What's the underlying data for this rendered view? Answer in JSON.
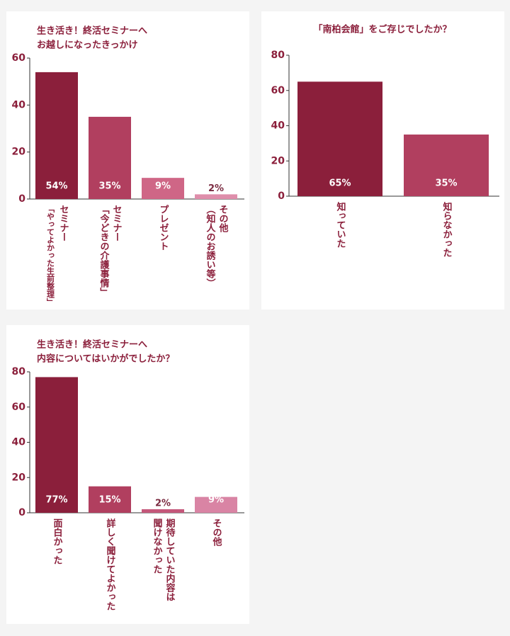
{
  "chart_data": [
    {
      "type": "bar",
      "title": [
        "生き活き！終活セミナーへ",
        "お越しになったきっかけ"
      ],
      "categories": [
        [
          "セミナー",
          "「やってよかった生前整理」"
        ],
        [
          "セミナー",
          "「今どきの介護事情」"
        ],
        [
          "プレゼント"
        ],
        [
          "その他",
          "（知人のお誘い等）"
        ]
      ],
      "values": [
        54,
        35,
        9,
        2
      ],
      "value_labels": [
        "54%",
        "35%",
        "9%",
        "2%"
      ],
      "colors": [
        "#8b1f3b",
        "#b13f5f",
        "#cf6686",
        "#df8eab"
      ],
      "ylim": [
        0,
        60
      ],
      "yticks": [
        0,
        20,
        40,
        60
      ]
    },
    {
      "type": "bar",
      "title": [
        "「南柏会館」をご存じでしたか？"
      ],
      "categories": [
        [
          "知っていた"
        ],
        [
          "知らなかった"
        ]
      ],
      "values": [
        65,
        35
      ],
      "value_labels": [
        "65%",
        "35%"
      ],
      "colors": [
        "#8b1f3b",
        "#b13f5f"
      ],
      "ylim": [
        0,
        80
      ],
      "yticks": [
        0,
        20,
        40,
        60,
        80
      ]
    },
    {
      "type": "bar",
      "title": [
        "生き活き！終活セミナーへ",
        "内容についてはいかがでしたか？"
      ],
      "categories": [
        [
          "面白かった"
        ],
        [
          "詳しく聞けてよかった"
        ],
        [
          "期待していた内容は",
          "聞けなかった"
        ],
        [
          "その他"
        ]
      ],
      "values": [
        77,
        15,
        2,
        9
      ],
      "value_labels": [
        "77%",
        "15%",
        "2%",
        "9%"
      ],
      "colors": [
        "#8b1f3b",
        "#b13f5f",
        "#c5577a",
        "#d984a4"
      ],
      "ylim": [
        0,
        80
      ],
      "yticks": [
        0,
        20,
        40,
        60,
        80
      ]
    }
  ]
}
